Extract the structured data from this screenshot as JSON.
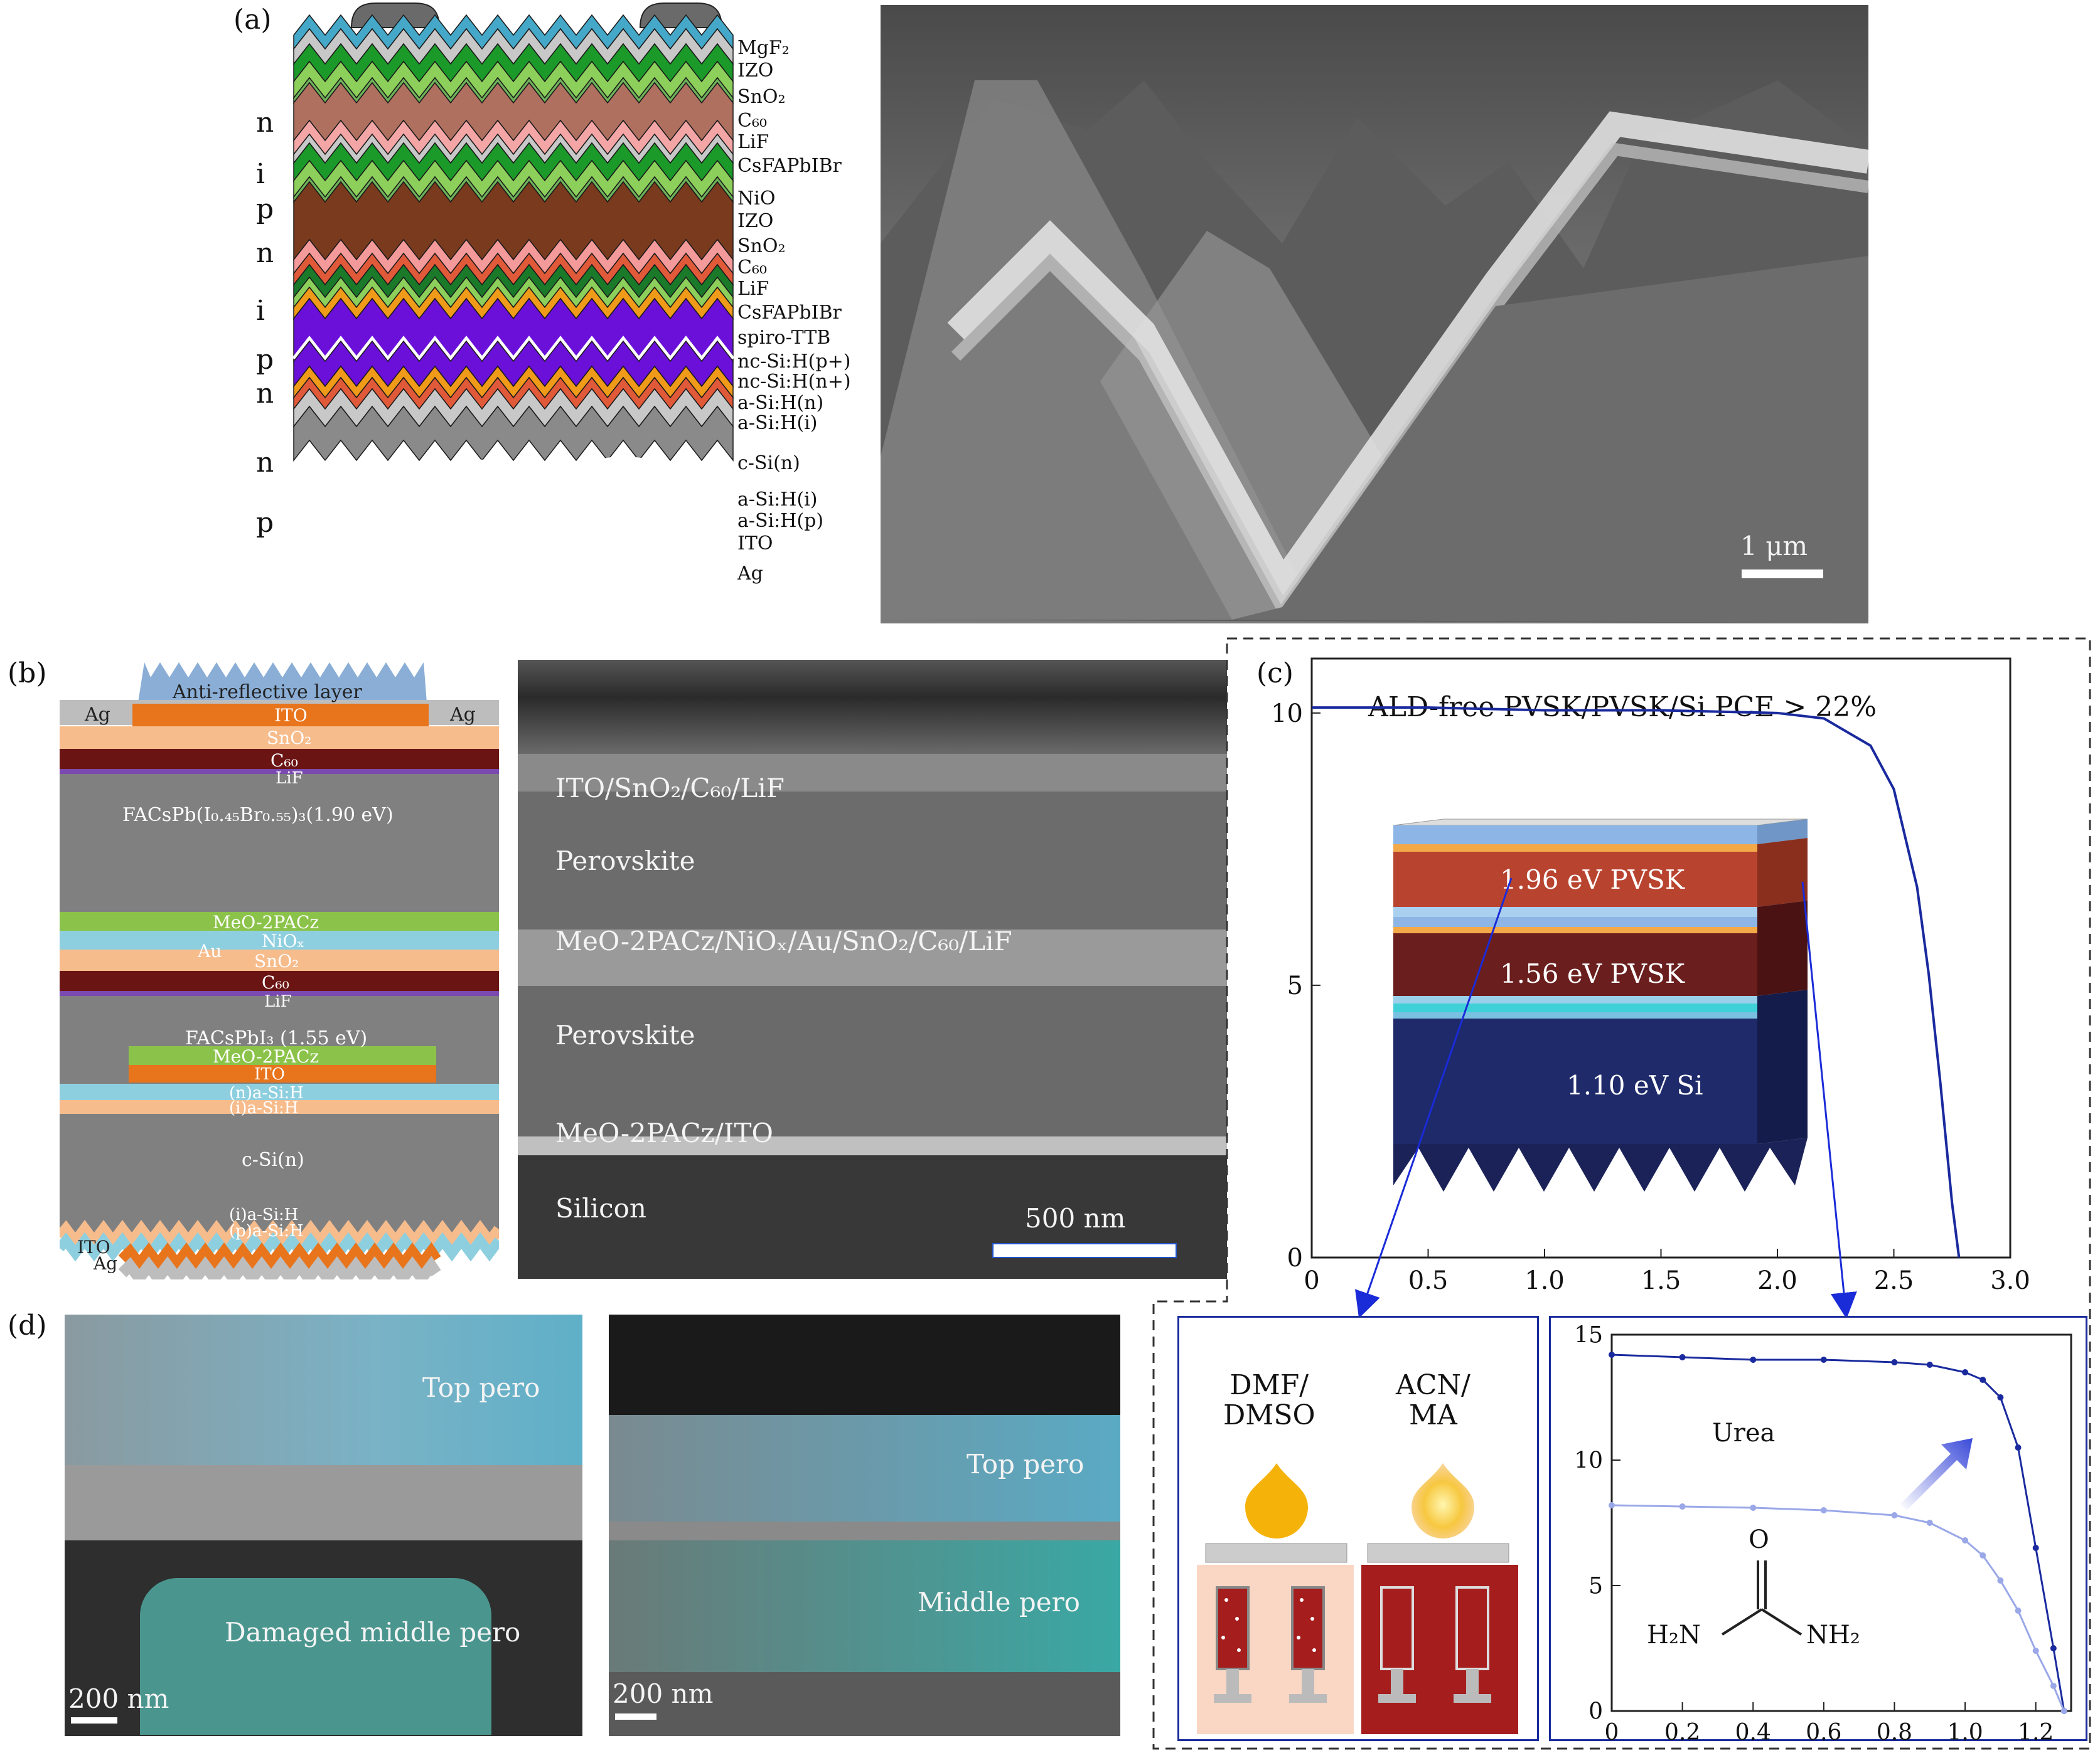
{
  "panel_a": {
    "label": "(a)",
    "layers": [
      "MgF₂",
      "IZO",
      "SnO₂",
      "C₆₀",
      "LiF",
      "CsFAPbIBr",
      "NiO",
      "IZO",
      "SnO₂",
      "C₆₀",
      "LiF",
      "CsFAPbIBr",
      "spiro-TTB",
      "nc-Si:H(p+)",
      "nc-Si:H(n+)",
      "a-Si:H(n)",
      "a-Si:H(i)",
      "c-Si(n)",
      "a-Si:H(i)",
      "a-Si:H(p)",
      "ITO",
      "Ag"
    ],
    "junction_tags": [
      "n",
      "i",
      "p",
      "n",
      "i",
      "p",
      "n",
      "n",
      "p"
    ],
    "scale": "1 μm"
  },
  "panel_b": {
    "label": "(b)",
    "stack_labels": {
      "arl": "Anti-reflective layer",
      "ag_left": "Ag",
      "ag_right": "Ag",
      "ito_top": "ITO",
      "sno2_top": "SnO₂",
      "c60_top": "C₆₀",
      "lif_top": "LiF",
      "top_pvsk": "FACsPb(I₀.₄₅Br₀.₅₅)₃(1.90 eV)",
      "meo_top": "MeO-2PACz",
      "au": "Au",
      "niox": "NiOₓ",
      "sno2_mid": "SnO₂",
      "c60_mid": "C₆₀",
      "lif_mid": "LiF",
      "mid_pvsk": "FACsPbI₃ (1.55 eV)",
      "meo_bot": "MeO-2PACz",
      "ito_mid": "ITO",
      "n_asi": "(n)a-Si:H",
      "i_asi_top": "(i)a-Si:H",
      "csi": "c-Si(n)",
      "i_asi_bot": "(i)a-Si:H",
      "p_asi": "(p)a-Si:H",
      "ito_bot": "ITO",
      "ag_bot": "Ag"
    },
    "sem_labels": [
      "ITO/SnO₂/C₆₀/LiF",
      "Perovskite",
      "MeO-2PACz/NiOₓ/Au/SnO₂/C₆₀/LiF",
      "Perovskite",
      "MeO-2PACz/ITO",
      "Silicon"
    ],
    "scale": "500 nm"
  },
  "panel_c": {
    "label": "(c)",
    "title": "ALD-free PVSK/PVSK/Si PCE > 22%",
    "inset_labels": [
      "1.96 eV PVSK",
      "1.56 eV PVSK",
      "1.10 eV Si"
    ],
    "solvents": [
      "DMF/\nDMSO",
      "ACN/\nMA"
    ],
    "urea": {
      "label": "Urea",
      "O": "O",
      "H2N": "H₂N",
      "NH2": "NH₂"
    }
  },
  "panel_d": {
    "label": "(d)",
    "left": [
      "Top pero",
      "Damaged middle pero"
    ],
    "right": [
      "Top pero",
      "Middle pero"
    ],
    "scale_left": "200 nm",
    "scale_right": "200 nm"
  },
  "chart_data": [
    {
      "type": "line",
      "x": [
        0,
        0.5,
        1.0,
        1.5,
        2.0,
        2.2,
        2.4,
        2.5,
        2.6,
        2.65,
        2.7,
        2.75,
        2.78
      ],
      "series": [
        {
          "values": [
            10.1,
            10.1,
            10.05,
            10.05,
            10.0,
            9.9,
            9.4,
            8.6,
            6.8,
            5.2,
            3.2,
            1.0,
            0.0
          ]
        }
      ],
      "xlim": [
        0,
        3.0
      ],
      "ylim": [
        0,
        11
      ],
      "xticks": [
        "0",
        "0.5",
        "1.0",
        "1.5",
        "2.0",
        "2.5",
        "3.0"
      ],
      "yticks": [
        "0",
        "5",
        "10"
      ]
    },
    {
      "type": "line",
      "x": [
        0,
        0.2,
        0.4,
        0.6,
        0.8,
        0.9,
        1.0,
        1.05,
        1.1,
        1.15,
        1.2,
        1.25,
        1.28
      ],
      "series": [
        {
          "name": "Urea",
          "values": [
            14.2,
            14.1,
            14.0,
            14.0,
            13.9,
            13.8,
            13.5,
            13.2,
            12.5,
            10.5,
            6.5,
            2.5,
            0
          ]
        },
        {
          "values": [
            8.2,
            8.15,
            8.1,
            8.0,
            7.8,
            7.5,
            6.8,
            6.2,
            5.2,
            4.0,
            2.4,
            1.0,
            0
          ]
        }
      ],
      "xlim": [
        0,
        1.3
      ],
      "ylim": [
        0,
        15
      ],
      "xticks": [
        "0",
        "0.2",
        "0.4",
        "0.6",
        "0.8",
        "1.0",
        "1.2"
      ],
      "yticks": [
        "0",
        "5",
        "10",
        "15"
      ]
    }
  ]
}
